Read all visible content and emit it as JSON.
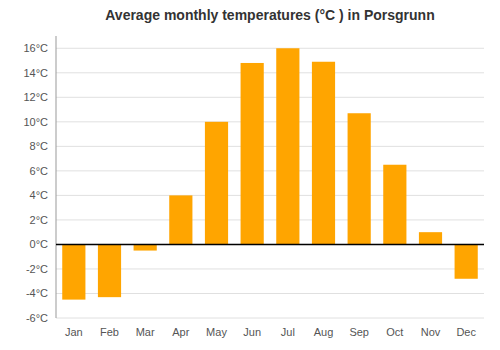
{
  "chart_data": {
    "type": "bar",
    "title": "Average monthly temperatures (°C ) in Porsgrunn",
    "categories": [
      "Jan",
      "Feb",
      "Mar",
      "Apr",
      "May",
      "Jun",
      "Jul",
      "Aug",
      "Sep",
      "Oct",
      "Nov",
      "Dec"
    ],
    "values": [
      -4.5,
      -4.3,
      -0.5,
      4.0,
      10.0,
      14.8,
      16.0,
      14.9,
      10.7,
      6.5,
      1.0,
      -2.8
    ],
    "color": "#FFA500",
    "ylim": [
      -6,
      17
    ],
    "yticks": [
      {
        "value": -6,
        "label": "-6°C"
      },
      {
        "value": -4,
        "label": "-4°C"
      },
      {
        "value": -2,
        "label": "-2°C"
      },
      {
        "value": 0,
        "label": "0°C"
      },
      {
        "value": 2,
        "label": "2°C"
      },
      {
        "value": 4,
        "label": "4°C"
      },
      {
        "value": 6,
        "label": "6°C"
      },
      {
        "value": 8,
        "label": "8°C"
      },
      {
        "value": 10,
        "label": "10°C"
      },
      {
        "value": 12,
        "label": "12°C"
      },
      {
        "value": 14,
        "label": "14°C"
      },
      {
        "value": 16,
        "label": "16°C"
      }
    ],
    "grid": true
  }
}
